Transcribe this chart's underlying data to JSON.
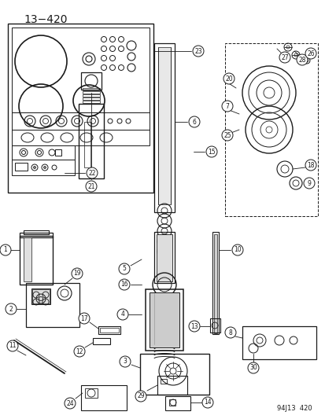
{
  "title": "13−420",
  "footer": "94J13  420",
  "bg_color": "#ffffff",
  "line_color": "#1a1a1a",
  "fig_width": 4.14,
  "fig_height": 5.33,
  "dpi": 100
}
